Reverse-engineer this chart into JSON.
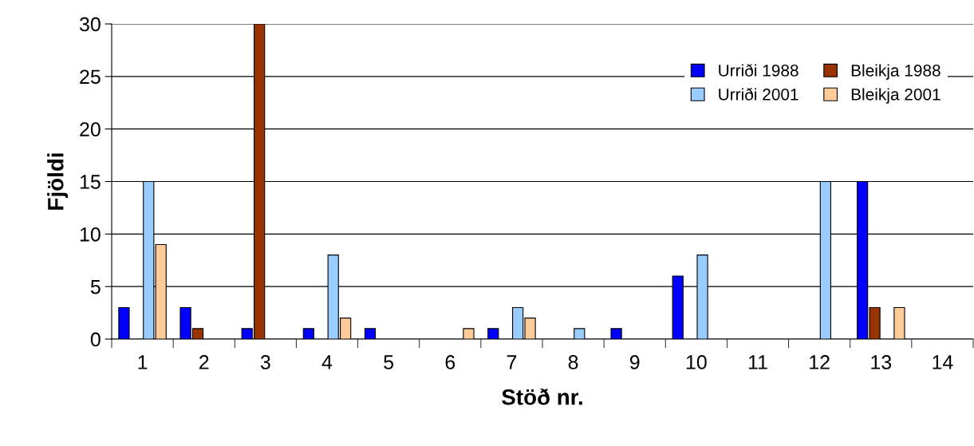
{
  "chart_data": {
    "type": "bar",
    "xlabel": "Stöð nr.",
    "ylabel": "Fjöldi",
    "categories": [
      "1",
      "2",
      "3",
      "4",
      "5",
      "6",
      "7",
      "8",
      "9",
      "10",
      "11",
      "12",
      "13",
      "14"
    ],
    "series": [
      {
        "name": "Urriði 1988",
        "color": "#0000ff",
        "values": [
          3,
          3,
          1,
          1,
          1,
          null,
          1,
          null,
          1,
          6,
          null,
          null,
          15,
          null
        ]
      },
      {
        "name": "Bleikja 1988",
        "color": "#993300",
        "values": [
          null,
          1,
          30,
          null,
          null,
          null,
          null,
          null,
          null,
          null,
          null,
          null,
          3,
          null
        ]
      },
      {
        "name": "Urriði 2001",
        "color": "#99ccff",
        "values": [
          15,
          null,
          null,
          8,
          null,
          null,
          3,
          1,
          null,
          8,
          null,
          15,
          null,
          null
        ]
      },
      {
        "name": "Bleikja 2001",
        "color": "#ffcc99",
        "values": [
          9,
          null,
          null,
          2,
          null,
          1,
          2,
          null,
          null,
          null,
          null,
          null,
          3,
          null
        ]
      }
    ],
    "ylim": [
      0,
      30
    ],
    "yticks": [
      0,
      5,
      10,
      15,
      20,
      25,
      30
    ],
    "grid": "y",
    "legend": "top right"
  }
}
